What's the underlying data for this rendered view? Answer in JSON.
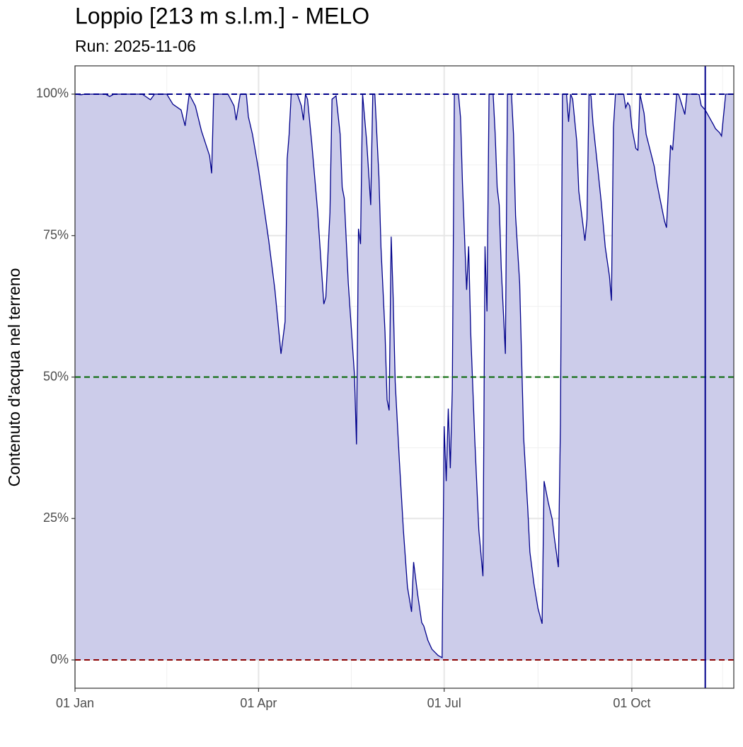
{
  "chart_data": {
    "type": "area",
    "title": "Loppio [213 m s.l.m.] - MELO",
    "subtitle": "Run: 2025-11-06",
    "y_label": "Contenuto d'acqua nel terreno",
    "x": [
      0,
      3,
      5,
      15,
      17,
      19,
      33,
      37,
      39,
      45,
      48,
      52,
      54,
      56,
      59,
      62,
      66,
      67,
      68,
      75,
      78,
      79,
      81,
      84,
      85,
      87,
      90,
      92,
      95,
      98,
      101,
      103,
      104,
      105,
      106,
      109,
      111,
      112,
      113,
      114,
      116,
      119,
      122,
      123,
      125,
      126,
      128,
      130,
      131,
      132,
      134,
      137,
      138,
      139,
      140,
      141,
      143,
      145,
      146,
      147,
      149,
      150,
      152,
      153,
      154,
      155,
      156,
      157,
      159,
      161,
      163,
      165,
      166,
      168,
      170,
      171,
      173,
      175,
      178,
      180,
      181,
      182,
      183,
      184,
      185,
      186,
      188,
      189,
      190,
      192,
      193,
      194,
      196,
      198,
      200,
      201,
      202,
      203,
      205,
      206,
      207,
      208,
      209,
      211,
      212,
      214,
      215,
      216,
      218,
      219,
      220,
      222,
      223,
      225,
      227,
      229,
      230,
      232,
      234,
      235,
      237,
      238,
      239,
      241,
      242,
      243,
      244,
      246,
      247,
      250,
      251,
      252,
      253,
      254,
      256,
      258,
      260,
      262,
      263,
      264,
      265,
      269,
      270,
      271,
      272,
      273,
      275,
      276,
      277,
      279,
      280,
      282,
      284,
      285,
      287,
      289,
      290,
      292,
      293,
      295,
      296,
      298,
      299,
      300,
      305,
      306,
      307,
      309,
      311,
      313,
      314,
      316,
      317,
      319,
      323
    ],
    "series": [
      {
        "color": "#00008b",
        "fill": "#ccccea",
        "values": [
          100,
          99.9,
          100,
          100,
          99.6,
          100,
          100,
          99.0,
          100,
          100,
          98.2,
          97.2,
          94.4,
          100,
          97.9,
          93.5,
          89.1,
          86.0,
          100,
          100,
          97.9,
          95.4,
          100,
          100,
          96.0,
          92.9,
          86.6,
          81.6,
          74.1,
          65.4,
          54.1,
          59.8,
          88.5,
          92.9,
          100,
          100,
          97.9,
          95.4,
          100,
          99.1,
          91.6,
          79.1,
          62.9,
          64.1,
          79.1,
          99.1,
          99.7,
          92.9,
          83.5,
          81.6,
          66.6,
          50.4,
          38.1,
          76.2,
          73.5,
          100,
          91.6,
          80.4,
          100,
          100,
          85.4,
          72.9,
          57.9,
          46.0,
          44.1,
          74.8,
          64.1,
          49.1,
          35.4,
          22.9,
          12.9,
          8.5,
          17.3,
          11.6,
          6.6,
          6.0,
          3.5,
          1.9,
          0.8,
          0.4,
          41.3,
          31.6,
          44.4,
          33.9,
          47.9,
          100,
          100,
          95.9,
          84.1,
          65.4,
          73.1,
          57.9,
          39.1,
          22.9,
          14.8,
          73.1,
          61.6,
          100,
          100,
          92.9,
          83.5,
          80.4,
          69.1,
          54.1,
          100,
          100,
          92.9,
          78.5,
          66.6,
          52.9,
          39.1,
          26.6,
          19.1,
          13.5,
          9.1,
          6.4,
          31.6,
          27.9,
          24.8,
          21.6,
          16.4,
          41.6,
          100,
          100,
          95.1,
          100,
          99.1,
          91.6,
          82.9,
          74.1,
          77.9,
          100,
          99.7,
          94.7,
          87.9,
          81.0,
          72.9,
          67.9,
          63.5,
          94.1,
          100,
          100,
          97.6,
          98.5,
          97.9,
          94.1,
          90.4,
          90.1,
          100,
          96.6,
          92.9,
          90.1,
          87.2,
          84.8,
          81.2,
          77.6,
          76.4,
          91.0,
          90.1,
          100,
          99.9,
          97.6,
          96.4,
          100,
          100,
          99.9,
          98.0,
          97.2,
          95.9,
          94.6,
          93.9,
          93.2,
          92.6,
          100,
          100
        ]
      }
    ],
    "xlim": [
      0,
      323
    ],
    "xticks": [
      {
        "value": 0,
        "label": "01 Jan"
      },
      {
        "value": 90,
        "label": "01 Apr"
      },
      {
        "value": 181,
        "label": "01 Jul"
      },
      {
        "value": 273,
        "label": "01 Oct"
      }
    ],
    "minor_xticks": [
      45,
      135.5,
      227,
      317.5
    ],
    "ylim": [
      -5,
      105
    ],
    "yticks": [
      {
        "value": 0,
        "label": "0%"
      },
      {
        "value": 25,
        "label": "25%"
      },
      {
        "value": 50,
        "label": "50%"
      },
      {
        "value": 75,
        "label": "75%"
      },
      {
        "value": 100,
        "label": "100%"
      }
    ],
    "minor_yticks": [
      12.5,
      37.5,
      62.5,
      87.5
    ],
    "grid": true,
    "hlines": [
      {
        "value": 100,
        "color": "#00008b"
      },
      {
        "value": 50,
        "color": "#006400"
      },
      {
        "value": 0,
        "color": "#8b0000"
      }
    ],
    "vline": {
      "value": 309,
      "color": "#00008b"
    }
  }
}
